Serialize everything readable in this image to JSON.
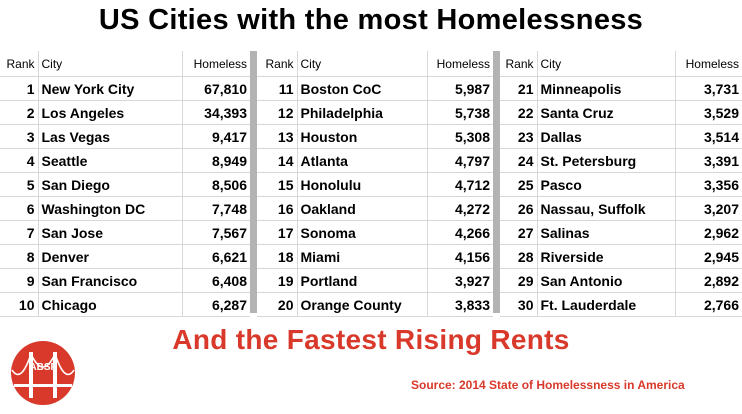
{
  "title": "US Cities with the most Homelessness",
  "headers": {
    "rank": "Rank",
    "city": "City",
    "homeless": "Homeless"
  },
  "columns": [
    {
      "rows": [
        {
          "rank": "1",
          "city": "New York City",
          "homeless": "67,810"
        },
        {
          "rank": "2",
          "city": "Los Angeles",
          "homeless": "34,393"
        },
        {
          "rank": "3",
          "city": "Las Vegas",
          "homeless": "9,417"
        },
        {
          "rank": "4",
          "city": "Seattle",
          "homeless": "8,949"
        },
        {
          "rank": "5",
          "city": "San Diego",
          "homeless": "8,506"
        },
        {
          "rank": "6",
          "city": "Washington DC",
          "homeless": "7,748"
        },
        {
          "rank": "7",
          "city": "San Jose",
          "homeless": "7,567"
        },
        {
          "rank": "8",
          "city": "Denver",
          "homeless": "6,621"
        },
        {
          "rank": "9",
          "city": "San Francisco",
          "homeless": "6,408"
        },
        {
          "rank": "10",
          "city": "Chicago",
          "homeless": "6,287"
        }
      ]
    },
    {
      "rows": [
        {
          "rank": "11",
          "city": "Boston CoC",
          "homeless": "5,987"
        },
        {
          "rank": "12",
          "city": "Philadelphia",
          "homeless": "5,738"
        },
        {
          "rank": "13",
          "city": "Houston",
          "homeless": "5,308"
        },
        {
          "rank": "14",
          "city": "Atlanta",
          "homeless": "4,797"
        },
        {
          "rank": "15",
          "city": "Honolulu",
          "homeless": "4,712"
        },
        {
          "rank": "16",
          "city": "Oakland",
          "homeless": "4,272"
        },
        {
          "rank": "17",
          "city": "Sonoma",
          "homeless": "4,266"
        },
        {
          "rank": "18",
          "city": "Miami",
          "homeless": "4,156"
        },
        {
          "rank": "19",
          "city": "Portland",
          "homeless": "3,927"
        },
        {
          "rank": "20",
          "city": "Orange County",
          "homeless": "3,833"
        }
      ]
    },
    {
      "rows": [
        {
          "rank": "21",
          "city": "Minneapolis",
          "homeless": "3,731"
        },
        {
          "rank": "22",
          "city": "Santa Cruz",
          "homeless": "3,529"
        },
        {
          "rank": "23",
          "city": "Dallas",
          "homeless": "3,514"
        },
        {
          "rank": "24",
          "city": "St. Petersburg",
          "homeless": "3,391"
        },
        {
          "rank": "25",
          "city": "Pasco",
          "homeless": "3,356"
        },
        {
          "rank": "26",
          "city": "Nassau, Suffolk",
          "homeless": "3,207"
        },
        {
          "rank": "27",
          "city": "Salinas",
          "homeless": "2,962"
        },
        {
          "rank": "28",
          "city": "Riverside",
          "homeless": "2,945"
        },
        {
          "rank": "29",
          "city": "San Antonio",
          "homeless": "2,892"
        },
        {
          "rank": "30",
          "city": "Ft. Lauderdale",
          "homeless": "2,766"
        }
      ]
    }
  ],
  "subtitle": "And the Fastest Rising Rents",
  "source": "Source: 2014 State of Homelessness in America",
  "logo": {
    "icon": "golden-gate-bridge-icon",
    "text": "ABSF",
    "color": "#d9392b"
  },
  "colors": {
    "accent": "#d9392b",
    "separator": "#b3b3b3",
    "gridline": "#d7d7d7"
  }
}
